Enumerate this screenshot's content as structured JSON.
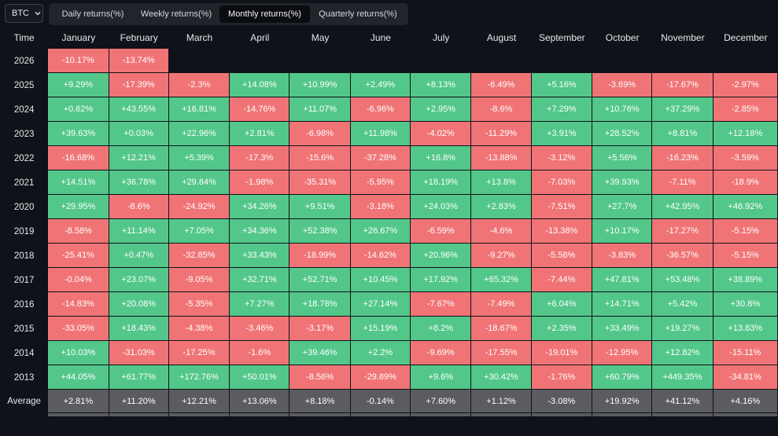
{
  "toolbar": {
    "asset": "BTC",
    "tabs": [
      "Daily returns(%)",
      "Weekly returns(%)",
      "Monthly returns(%)",
      "Quarterly returns(%)"
    ],
    "active_tab": "Monthly returns(%)"
  },
  "table": {
    "headers": [
      "Time",
      "January",
      "February",
      "March",
      "April",
      "May",
      "June",
      "July",
      "August",
      "September",
      "October",
      "November",
      "December"
    ],
    "rows": [
      {
        "year": "2026",
        "cells": [
          "-10.17%",
          "-13.74%",
          "",
          "",
          "",
          "",
          "",
          "",
          "",
          "",
          "",
          ""
        ]
      },
      {
        "year": "2025",
        "cells": [
          "+9.29%",
          "-17.39%",
          "-2.3%",
          "+14.08%",
          "+10.99%",
          "+2.49%",
          "+8.13%",
          "-6.49%",
          "+5.16%",
          "-3.69%",
          "-17.67%",
          "-2.97%"
        ]
      },
      {
        "year": "2024",
        "cells": [
          "+0.62%",
          "+43.55%",
          "+16.81%",
          "-14.76%",
          "+11.07%",
          "-6.96%",
          "+2.95%",
          "-8.6%",
          "+7.29%",
          "+10.76%",
          "+37.29%",
          "-2.85%"
        ]
      },
      {
        "year": "2023",
        "cells": [
          "+39.63%",
          "+0.03%",
          "+22.96%",
          "+2.81%",
          "-6.98%",
          "+11.98%",
          "-4.02%",
          "-11.29%",
          "+3.91%",
          "+28.52%",
          "+8.81%",
          "+12.18%"
        ]
      },
      {
        "year": "2022",
        "cells": [
          "-16.68%",
          "+12.21%",
          "+5.39%",
          "-17.3%",
          "-15.6%",
          "-37.28%",
          "+16.8%",
          "-13.88%",
          "-3.12%",
          "+5.56%",
          "-16.23%",
          "-3.59%"
        ]
      },
      {
        "year": "2021",
        "cells": [
          "+14.51%",
          "+36.78%",
          "+29.84%",
          "-1.98%",
          "-35.31%",
          "-5.95%",
          "+18.19%",
          "+13.8%",
          "-7.03%",
          "+39.93%",
          "-7.11%",
          "-18.9%"
        ]
      },
      {
        "year": "2020",
        "cells": [
          "+29.95%",
          "-8.6%",
          "-24.92%",
          "+34.26%",
          "+9.51%",
          "-3.18%",
          "+24.03%",
          "+2.83%",
          "-7.51%",
          "+27.7%",
          "+42.95%",
          "+46.92%"
        ]
      },
      {
        "year": "2019",
        "cells": [
          "-8.58%",
          "+11.14%",
          "+7.05%",
          "+34.36%",
          "+52.38%",
          "+26.67%",
          "-6.59%",
          "-4.6%",
          "-13.38%",
          "+10.17%",
          "-17.27%",
          "-5.15%"
        ]
      },
      {
        "year": "2018",
        "cells": [
          "-25.41%",
          "+0.47%",
          "-32.85%",
          "+33.43%",
          "-18.99%",
          "-14.62%",
          "+20.96%",
          "-9.27%",
          "-5.58%",
          "-3.83%",
          "-36.57%",
          "-5.15%"
        ]
      },
      {
        "year": "2017",
        "cells": [
          "-0.04%",
          "+23.07%",
          "-9.05%",
          "+32.71%",
          "+52.71%",
          "+10.45%",
          "+17.92%",
          "+65.32%",
          "-7.44%",
          "+47.81%",
          "+53.48%",
          "+38.89%"
        ]
      },
      {
        "year": "2016",
        "cells": [
          "-14.83%",
          "+20.08%",
          "-5.35%",
          "+7.27%",
          "+18.78%",
          "+27.14%",
          "-7.67%",
          "-7.49%",
          "+6.04%",
          "+14.71%",
          "+5.42%",
          "+30.8%"
        ]
      },
      {
        "year": "2015",
        "cells": [
          "-33.05%",
          "+18.43%",
          "-4.38%",
          "-3.46%",
          "-3.17%",
          "+15.19%",
          "+8.2%",
          "-18.67%",
          "+2.35%",
          "+33.49%",
          "+19.27%",
          "+13.83%"
        ]
      },
      {
        "year": "2014",
        "cells": [
          "+10.03%",
          "-31.03%",
          "-17.25%",
          "-1.6%",
          "+39.46%",
          "+2.2%",
          "-9.69%",
          "-17.55%",
          "-19.01%",
          "-12.95%",
          "+12.82%",
          "-15.11%"
        ]
      },
      {
        "year": "2013",
        "cells": [
          "+44.05%",
          "+61.77%",
          "+172.76%",
          "+50.01%",
          "-8.56%",
          "-29.89%",
          "+9.6%",
          "+30.42%",
          "-1.76%",
          "+60.79%",
          "+449.35%",
          "-34.81%"
        ]
      }
    ],
    "average": {
      "label": "Average",
      "cells": [
        "+2.81%",
        "+11.20%",
        "+12.21%",
        "+13.06%",
        "+8.18%",
        "-0.14%",
        "+7.60%",
        "+1.12%",
        "-3.08%",
        "+19.92%",
        "+41.12%",
        "+4.16%"
      ]
    },
    "colors": {
      "positive": "#52c789",
      "negative": "#f07476",
      "average": "#5b5c60",
      "background": "#0f1218"
    }
  }
}
